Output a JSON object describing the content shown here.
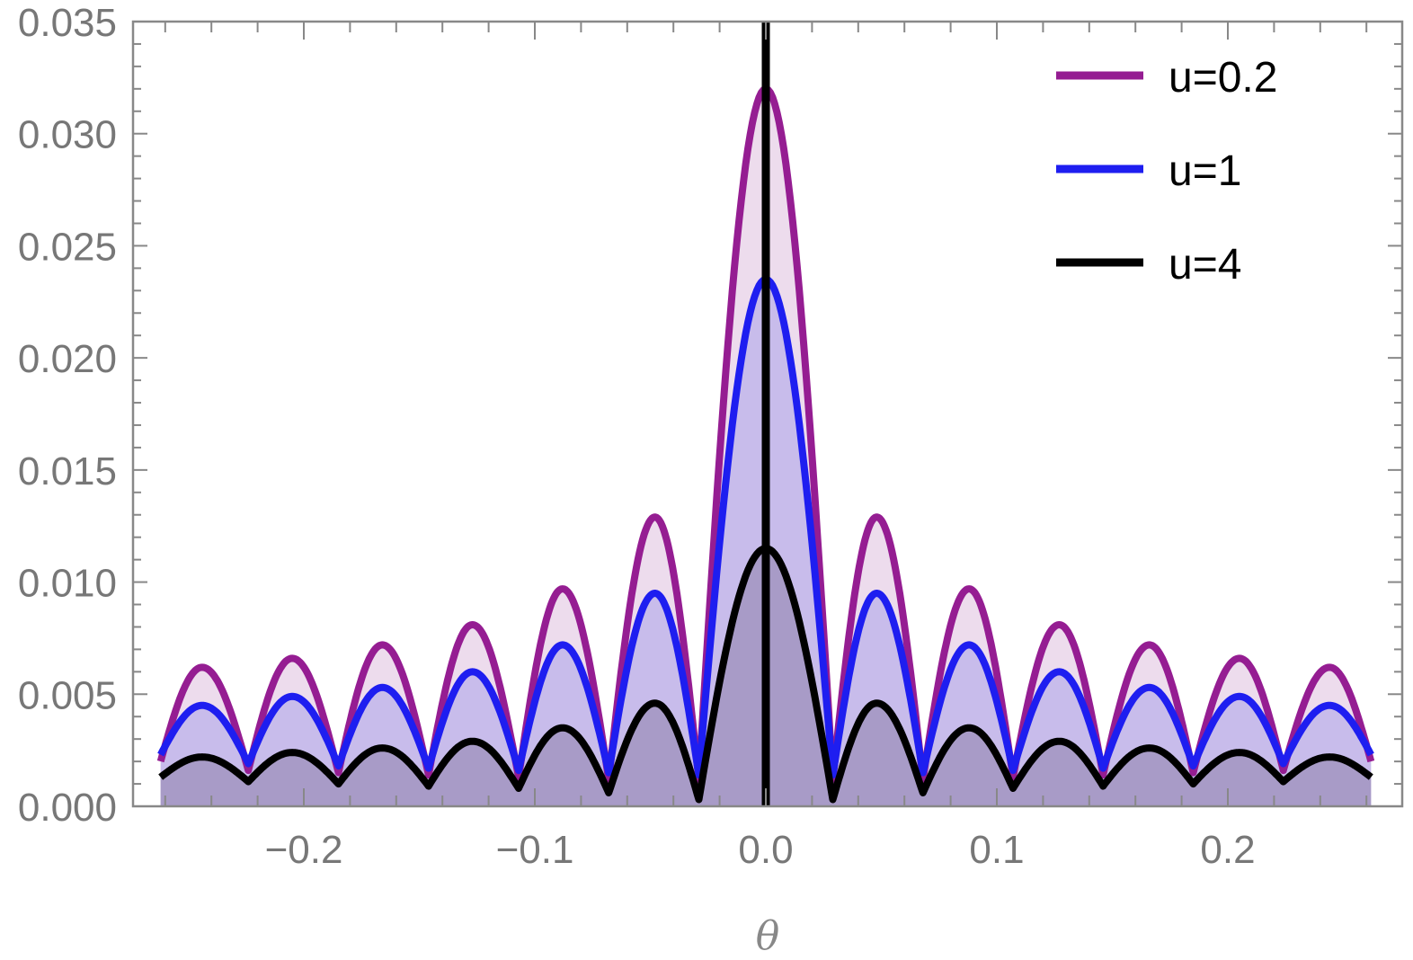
{
  "chart_data": {
    "type": "area",
    "xlabel": "θ",
    "ylabel": "",
    "xlim": [
      -0.262,
      0.262
    ],
    "ylim": [
      0,
      0.035
    ],
    "grid": false,
    "legend_placement": "top-right",
    "x_ticks": [
      "-0.2",
      "-0.1",
      "0.0",
      "0.1",
      "0.2"
    ],
    "x_tick_values": [
      -0.2,
      -0.1,
      0,
      0.1,
      0.2
    ],
    "y_ticks": [
      "0.000",
      "0.005",
      "0.010",
      "0.015",
      "0.020",
      "0.025",
      "0.030",
      "0.035"
    ],
    "y_tick_values": [
      0,
      0.005,
      0.01,
      0.015,
      0.02,
      0.025,
      0.03,
      0.035
    ],
    "vertical_line_x": 0,
    "x": [
      -0.262,
      -0.244,
      -0.224,
      -0.205,
      -0.185,
      -0.166,
      -0.146,
      -0.127,
      -0.107,
      -0.088,
      -0.068,
      -0.048,
      -0.029,
      0,
      0.029,
      0.048,
      0.068,
      0.088,
      0.107,
      0.127,
      0.146,
      0.166,
      0.185,
      0.205,
      0.224,
      0.244,
      0.262
    ],
    "series": [
      {
        "name": "u=0.2",
        "color": "#951d92",
        "fill": "#ead6ea",
        "values": [
          0.002,
          0.0062,
          0.0016,
          0.0066,
          0.0015,
          0.0072,
          0.0014,
          0.0081,
          0.0013,
          0.0097,
          0.0012,
          0.0129,
          0.0012,
          0.032,
          0.0012,
          0.0129,
          0.0012,
          0.0097,
          0.0013,
          0.0081,
          0.0014,
          0.0072,
          0.0015,
          0.0066,
          0.0016,
          0.0062,
          0.002
        ]
      },
      {
        "name": "u=1",
        "color": "#1e1ef0",
        "fill": "#c1b6ea",
        "values": [
          0.0023,
          0.0045,
          0.0019,
          0.0049,
          0.0018,
          0.0053,
          0.0017,
          0.006,
          0.0016,
          0.0072,
          0.0015,
          0.0095,
          0.0014,
          0.0235,
          0.0014,
          0.0095,
          0.0015,
          0.0072,
          0.0016,
          0.006,
          0.0017,
          0.0053,
          0.0018,
          0.0049,
          0.0019,
          0.0045,
          0.0023
        ]
      },
      {
        "name": "u=4",
        "color": "#000000",
        "fill": "#a295c1",
        "values": [
          0.0013,
          0.0022,
          0.0011,
          0.0024,
          0.001,
          0.0026,
          0.0009,
          0.0029,
          0.0008,
          0.0035,
          0.0006,
          0.0046,
          0.0003,
          0.0115,
          0.0003,
          0.0046,
          0.0006,
          0.0035,
          0.0008,
          0.0029,
          0.0009,
          0.0026,
          0.001,
          0.0024,
          0.0011,
          0.0022,
          0.0013
        ]
      }
    ]
  }
}
